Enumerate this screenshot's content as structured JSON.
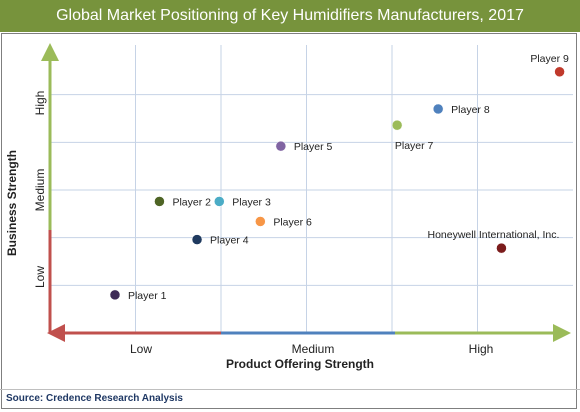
{
  "header": {
    "title": "Global Market Positioning of Key Humidifiers Manufacturers, 2017"
  },
  "footer": {
    "source": "Source: Credence Research Analysis"
  },
  "chart_data": {
    "type": "scatter",
    "title": "Global Market Positioning of Key Humidifiers Manufacturers, 2017",
    "xlabel": "Product Offering Strength",
    "ylabel": "Business Strength",
    "x_ticks": [
      "Low",
      "Medium",
      "High"
    ],
    "y_ticks": [
      "Low",
      "Medium",
      "High"
    ],
    "xlim": [
      0,
      3
    ],
    "ylim": [
      0,
      3
    ],
    "grid": true,
    "points": [
      {
        "label": "Player 1",
        "x": 0.38,
        "y": 0.4,
        "color": "#3e2a57",
        "label_side": "right"
      },
      {
        "label": "Player 2",
        "x": 0.64,
        "y": 1.38,
        "color": "#4e6425",
        "label_side": "right"
      },
      {
        "label": "Player 3",
        "x": 0.99,
        "y": 1.38,
        "color": "#4bacc6",
        "label_side": "right"
      },
      {
        "label": "Player 4",
        "x": 0.86,
        "y": 0.98,
        "color": "#1f3a5f",
        "label_side": "right"
      },
      {
        "label": "Player 5",
        "x": 1.35,
        "y": 1.96,
        "color": "#8064a2",
        "label_side": "right"
      },
      {
        "label": "Player 6",
        "x": 1.23,
        "y": 1.17,
        "color": "#f79646",
        "label_side": "right"
      },
      {
        "label": "Player 7",
        "x": 2.03,
        "y": 2.18,
        "color": "#9bbb59",
        "label_side": "below"
      },
      {
        "label": "Player 8",
        "x": 2.27,
        "y": 2.35,
        "color": "#4f81bd",
        "label_side": "right"
      },
      {
        "label": "Player 9",
        "x": 2.98,
        "y": 2.74,
        "color": "#c0392b",
        "label_side": "above"
      },
      {
        "label": "Honeywell International, Inc.",
        "x": 2.64,
        "y": 0.89,
        "color": "#7b1c1c",
        "label_side": "above"
      }
    ],
    "colors": {
      "axis_low": "#c0504d",
      "axis_medium": "#4f81bd",
      "axis_high": "#9bbb59",
      "grid": "#c6d3e6"
    }
  }
}
